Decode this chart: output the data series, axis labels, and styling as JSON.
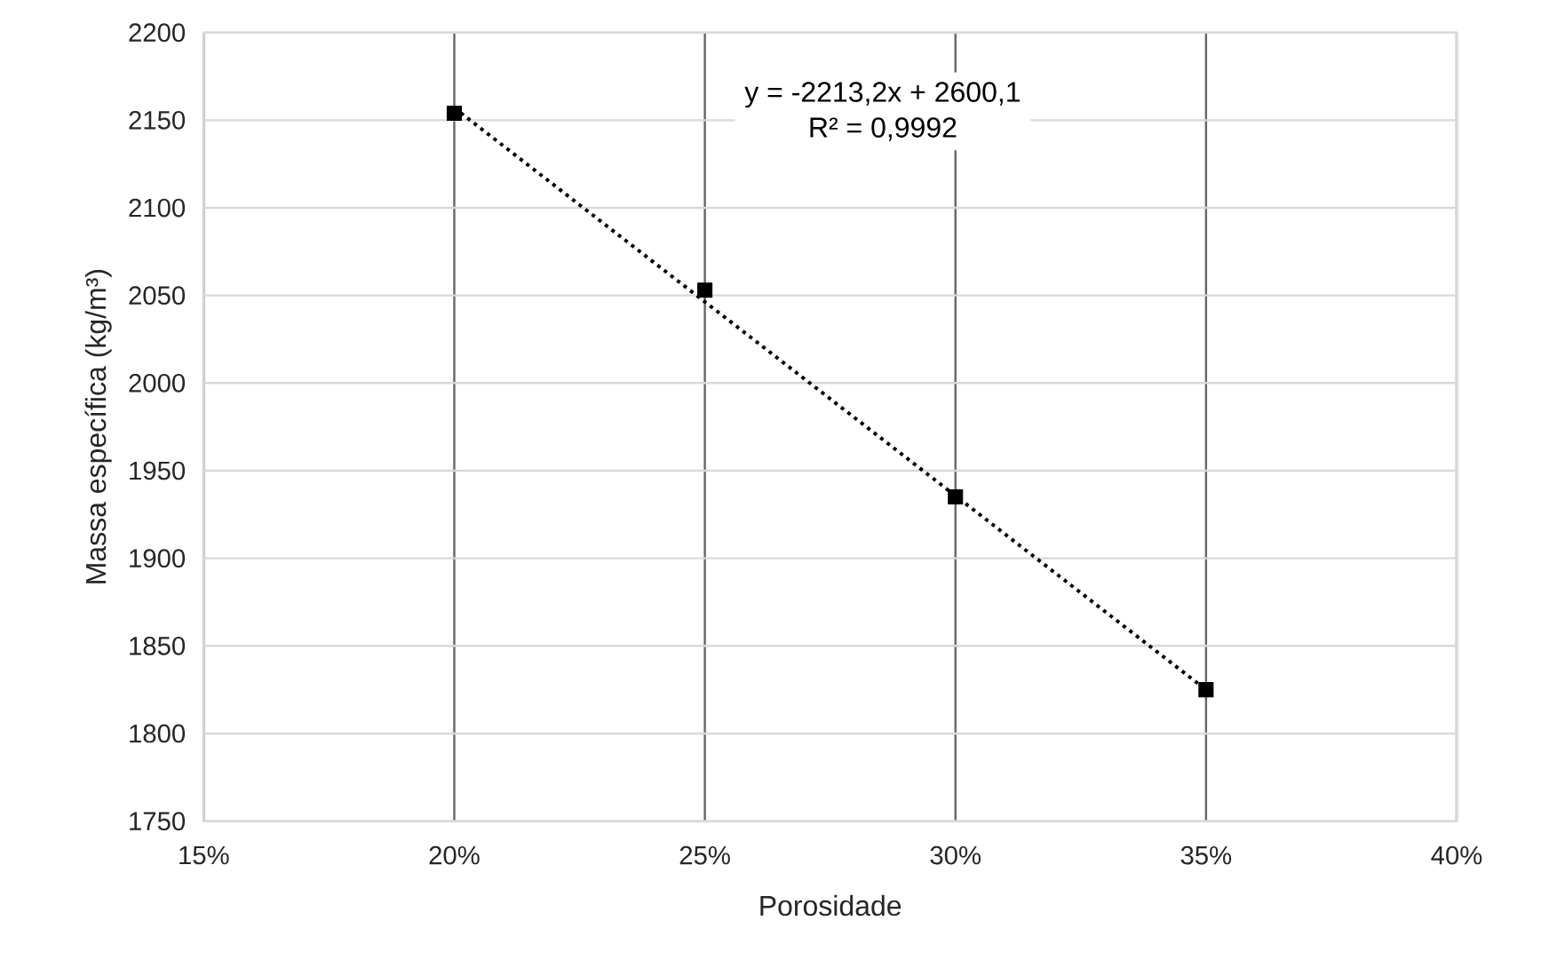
{
  "chart_data": {
    "type": "scatter",
    "xlabel": "Porosidade",
    "ylabel": "Massa específica (kg/m³)",
    "annotations": [
      "y = -2213,2x + 2600,1",
      "R² = 0,9992"
    ],
    "series": [
      {
        "color": "#000000",
        "marker": "square",
        "x": [
          0.2,
          0.25,
          0.3,
          0.35
        ],
        "values": [
          2154,
          2053,
          1935,
          1825
        ]
      },
      {
        "type": "line",
        "color": "#000000",
        "line_style": "dotted",
        "marker": "none",
        "x": [
          0.2,
          0.35
        ],
        "values": [
          2157,
          1825
        ]
      }
    ],
    "xlim": [
      0.15,
      0.4
    ],
    "xticks": [
      {
        "value": 0.15,
        "label": "15%"
      },
      {
        "value": 0.2,
        "label": "20%"
      },
      {
        "value": 0.25,
        "label": "25%"
      },
      {
        "value": 0.3,
        "label": "30%"
      },
      {
        "value": 0.35,
        "label": "35%"
      },
      {
        "value": 0.4,
        "label": "40%"
      }
    ],
    "ylim": [
      1750,
      2200
    ],
    "yticks": [
      1750,
      1800,
      1850,
      1900,
      1950,
      2000,
      2050,
      2100,
      2150,
      2200
    ],
    "grid": true
  }
}
